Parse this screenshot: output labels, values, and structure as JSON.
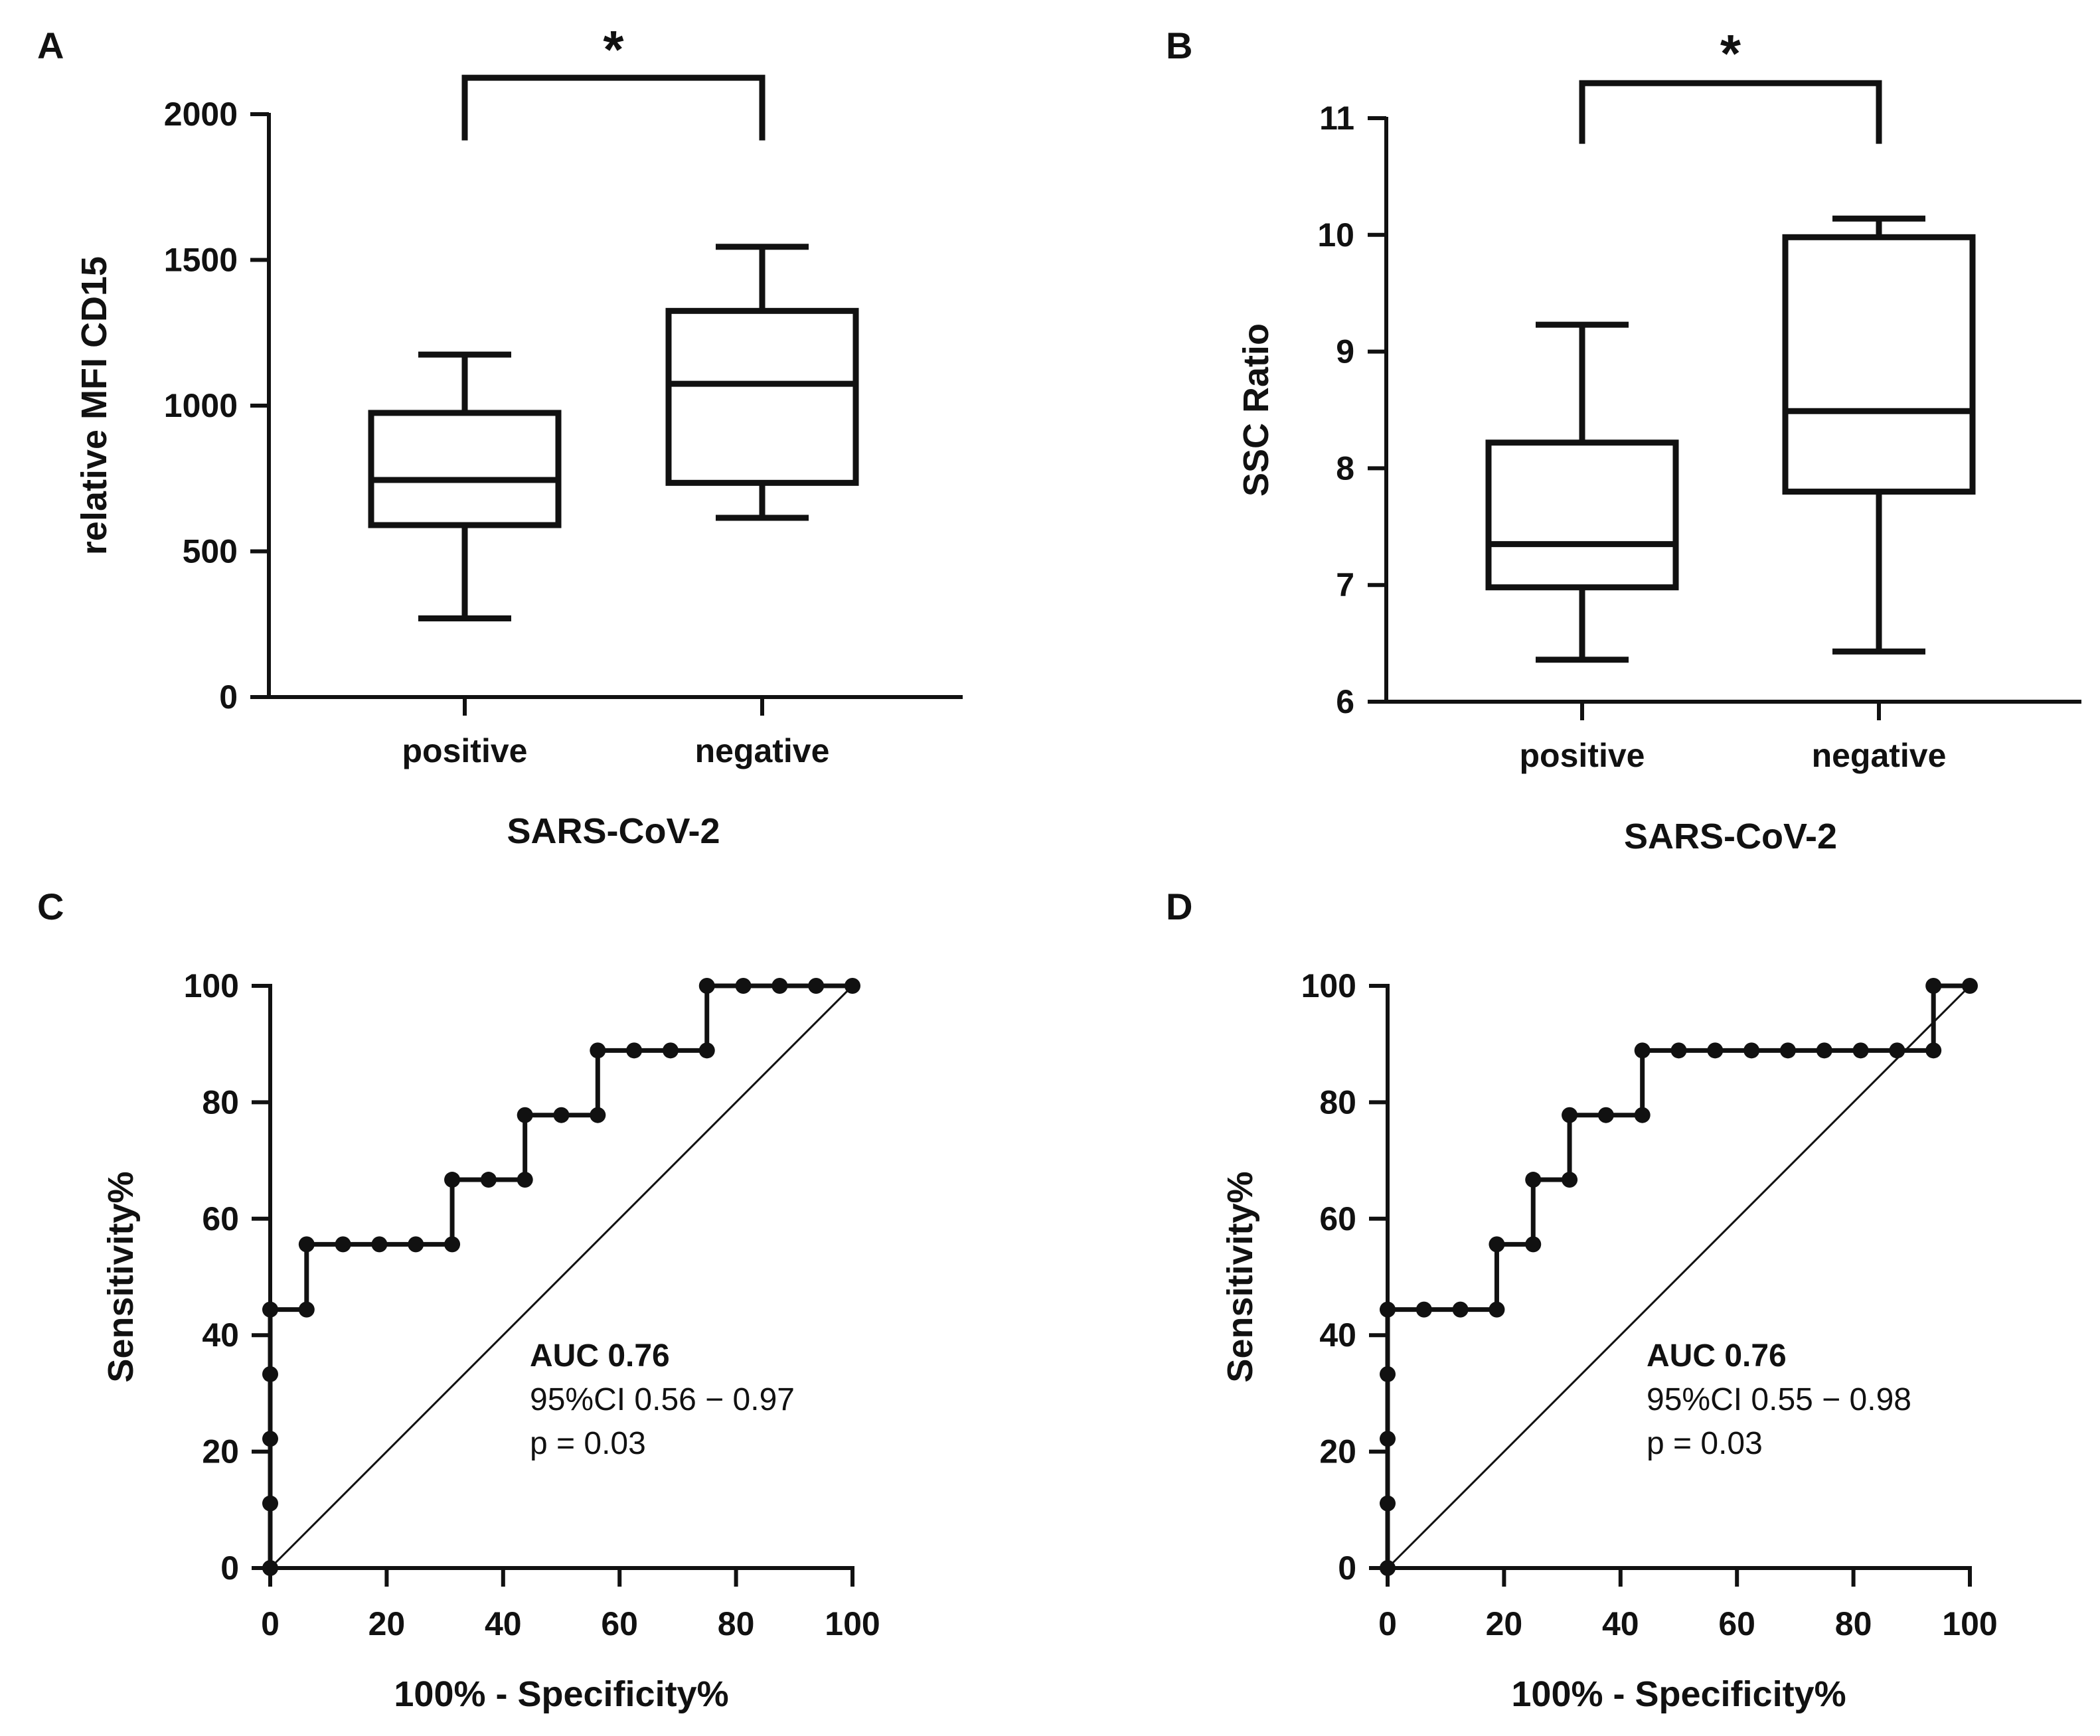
{
  "figure": {
    "panels": [
      "A",
      "B",
      "C",
      "D"
    ]
  },
  "chart_data": [
    {
      "id": "A",
      "type": "box",
      "panel_label": "A",
      "xlabel": "SARS-CoV-2",
      "ylabel": "relative MFI CD15",
      "ylim": [
        0,
        2000
      ],
      "yticks": [
        "0",
        "500",
        "1000",
        "1500",
        "2000"
      ],
      "categories": [
        "positive",
        "negative"
      ],
      "boxes": [
        {
          "name": "positive",
          "min": 270,
          "q1": 590,
          "median": 745,
          "q3": 975,
          "max": 1175
        },
        {
          "name": "negative",
          "min": 615,
          "q1": 735,
          "median": 1075,
          "q3": 1325,
          "max": 1545
        }
      ],
      "significance": "*",
      "sig_bracket": {
        "y_data": 2125,
        "drop": 215
      }
    },
    {
      "id": "B",
      "type": "box",
      "panel_label": "B",
      "xlabel": "SARS-CoV-2",
      "ylabel": "SSC Ratio",
      "ylim": [
        6,
        11
      ],
      "yticks": [
        "6",
        "7",
        "8",
        "9",
        "10",
        "11"
      ],
      "categories": [
        "positive",
        "negative"
      ],
      "boxes": [
        {
          "name": "positive",
          "min": 6.36,
          "q1": 6.98,
          "median": 7.35,
          "q3": 8.22,
          "max": 9.23
        },
        {
          "name": "negative",
          "min": 6.43,
          "q1": 7.8,
          "median": 8.49,
          "q3": 9.98,
          "max": 10.14
        }
      ],
      "significance": "*",
      "sig_bracket": {
        "y_data": 11.3,
        "drop": 0.52
      }
    },
    {
      "id": "C",
      "type": "line",
      "panel_label": "C",
      "xlabel": "100% - Specificity%",
      "ylabel": "Sensitivity%",
      "xlim": [
        0,
        100
      ],
      "ylim": [
        0,
        100
      ],
      "xticks": [
        "0",
        "20",
        "40",
        "60",
        "80",
        "100"
      ],
      "yticks": [
        "0",
        "20",
        "40",
        "60",
        "80",
        "100"
      ],
      "x": [
        0,
        0,
        0,
        0,
        0,
        6.25,
        6.25,
        12.5,
        18.75,
        25,
        31.25,
        31.25,
        37.5,
        43.75,
        43.75,
        50,
        56.25,
        56.25,
        62.5,
        68.75,
        75,
        75,
        81.25,
        87.5,
        93.75,
        100
      ],
      "y": [
        0,
        11.1,
        22.2,
        33.3,
        44.4,
        44.4,
        55.6,
        55.6,
        55.6,
        55.6,
        55.6,
        66.7,
        66.7,
        66.7,
        77.8,
        77.8,
        77.8,
        88.9,
        88.9,
        88.9,
        88.9,
        100,
        100,
        100,
        100,
        100
      ],
      "reference_line": [
        [
          0,
          0
        ],
        [
          100,
          100
        ]
      ],
      "annotation": {
        "title": "AUC 0.76",
        "ci": "95%CI 0.56 − 0.97",
        "p": "p = 0.03"
      }
    },
    {
      "id": "D",
      "type": "line",
      "panel_label": "D",
      "xlabel": "100% - Specificity%",
      "ylabel": "Sensitivity%",
      "xlim": [
        0,
        100
      ],
      "ylim": [
        0,
        100
      ],
      "xticks": [
        "0",
        "20",
        "40",
        "60",
        "80",
        "100"
      ],
      "yticks": [
        "0",
        "20",
        "40",
        "60",
        "80",
        "100"
      ],
      "x": [
        0,
        0,
        0,
        0,
        0,
        6.25,
        12.5,
        18.75,
        18.75,
        25,
        25,
        31.25,
        31.25,
        37.5,
        43.75,
        43.75,
        50,
        56.25,
        62.5,
        68.75,
        75,
        81.25,
        87.5,
        93.75,
        93.75,
        100
      ],
      "y": [
        0,
        11.1,
        22.2,
        33.3,
        44.4,
        44.4,
        44.4,
        44.4,
        55.6,
        55.6,
        66.7,
        66.7,
        77.8,
        77.8,
        77.8,
        88.9,
        88.9,
        88.9,
        88.9,
        88.9,
        88.9,
        88.9,
        88.9,
        88.9,
        100,
        100
      ],
      "reference_line": [
        [
          0,
          0
        ],
        [
          100,
          100
        ]
      ],
      "annotation": {
        "title": "AUC 0.76",
        "ci": "95%CI 0.55 − 0.98",
        "p": "p = 0.03"
      }
    }
  ]
}
